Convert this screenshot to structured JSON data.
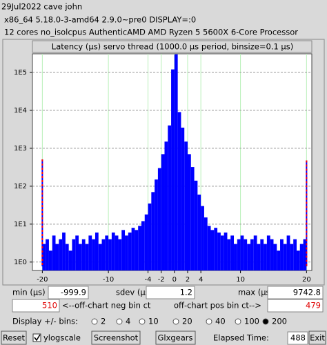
{
  "header": {
    "line1": "29Jul2022 cave john",
    "line2": "x86_64  5.18.0-3-amd64  2.9.0~pre0  DISPLAY=:0",
    "line3": "12 cores  no_isolcpus  AuthenticAMD  AMD Ryzen 5 5600X 6-Core Processor"
  },
  "chart_data": {
    "type": "histogram",
    "title": "Latency (µs) servo thread (1000.0 µs period, binsize=0.1 µs)",
    "bins": [
      -20,
      -19.5,
      -19,
      -18.5,
      -18,
      -17.5,
      -17,
      -16.5,
      -16,
      -15.5,
      -15,
      -14.5,
      -14,
      -13.5,
      -13,
      -12.5,
      -12,
      -11.5,
      -11,
      -10.5,
      -10,
      -9.5,
      -9,
      -8.5,
      -8,
      -7.5,
      -7,
      -6.5,
      -6,
      -5.5,
      -5,
      -4.5,
      -4,
      -3.5,
      -3,
      -2.5,
      -2,
      -1.5,
      -1,
      -0.5,
      0,
      0.5,
      1,
      1.5,
      2,
      2.5,
      3,
      3.5,
      4,
      4.5,
      5,
      5.5,
      6,
      6.5,
      7,
      7.5,
      8,
      8.5,
      9,
      9.5,
      10,
      10.5,
      11,
      11.5,
      12,
      12.5,
      13,
      13.5,
      14,
      14.5,
      15,
      15.5,
      16,
      16.5,
      17,
      17.5,
      18,
      18.5,
      19,
      19.5,
      20
    ],
    "counts": [
      3,
      4,
      2,
      5,
      3,
      4,
      6,
      3,
      2,
      4,
      5,
      3,
      4,
      3,
      5,
      4,
      6,
      3,
      4,
      5,
      4,
      6,
      5,
      4,
      7,
      5,
      6,
      8,
      7,
      9,
      12,
      18,
      35,
      70,
      150,
      300,
      700,
      1500,
      4000,
      120000,
      300000,
      9000,
      3500,
      1500,
      700,
      320,
      140,
      60,
      30,
      15,
      9,
      7,
      8,
      6,
      5,
      6,
      4,
      5,
      3,
      4,
      5,
      4,
      3,
      4,
      5,
      3,
      4,
      3,
      5,
      4,
      3,
      2,
      4,
      3,
      5,
      3,
      4,
      2,
      3,
      4
    ],
    "color": "#0000ff",
    "offchart_color": "#ff0000",
    "xlim": [
      -21.5,
      20.8
    ],
    "xticks": [
      -20,
      -10,
      -4,
      -2,
      0,
      2,
      4,
      10,
      20
    ],
    "ylim": [
      0.6,
      309000
    ],
    "yticks": [
      {
        "value": 1,
        "label": "1E0"
      },
      {
        "value": 10,
        "label": "1E1"
      },
      {
        "value": 100,
        "label": "1E2"
      },
      {
        "value": 1000,
        "label": "1E3"
      },
      {
        "value": 10000,
        "label": "1E4"
      },
      {
        "value": 100000,
        "label": "1E5"
      }
    ],
    "log_y": true,
    "grid": true
  },
  "stats": {
    "min_label": "min (µs)",
    "min": -999.9,
    "sdev_label": "sdev (µs)",
    "sdev": 1.2,
    "max_label": "max (µs)",
    "max": 9742.8,
    "neg_offchart": 510,
    "neg_label": "<--off-chart neg bin ct",
    "pos_label": "off-chart pos bin ct-->",
    "pos_offchart": 479
  },
  "bins_row": {
    "label": "Display +/- bins:",
    "options": [
      "2",
      "4",
      "10",
      "20",
      "40",
      "100",
      "200"
    ],
    "selected": "200"
  },
  "buttons": {
    "reset": "Reset",
    "ylogscale": "ylogscale",
    "ylogscale_checked": true,
    "screenshot": "Screenshot",
    "glxgears": "Glxgears",
    "elapsed_label": "Elapsed Time:",
    "elapsed": 488,
    "exit": "Exit"
  }
}
